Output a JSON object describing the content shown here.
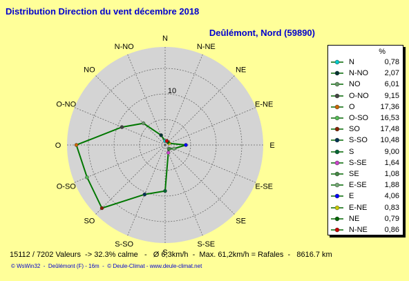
{
  "title": "Distribution Direction du vent   décembre 2018",
  "subtitle": "Deûlémont, Nord (59890)",
  "legend_header": "%",
  "stats_line": "15112 / 7202 Valeurs  -> 32.3% calme   -   Ø 6,3km/h  -  Max. 61,2km/h = Rafales  -   8616.7 km",
  "footer": "© WsWin32  -  Deûlémont (F) - 16m  -  © Deule-Climat - www.deule-climat.net",
  "chart_data": {
    "type": "radar",
    "title": "Distribution Direction du vent   décembre 2018",
    "ring_label": "10",
    "rmax": 20,
    "ring_step": 5,
    "series_color": "#007700",
    "directions": [
      {
        "name": "N",
        "value": 0.78,
        "color": "#00cccc"
      },
      {
        "name": "N-NO",
        "value": 2.07,
        "color": "#003333"
      },
      {
        "name": "NO",
        "value": 6.01,
        "color": "#669966"
      },
      {
        "name": "O-NO",
        "value": 9.15,
        "color": "#444444"
      },
      {
        "name": "O",
        "value": 17.36,
        "color": "#cc6600"
      },
      {
        "name": "O-SO",
        "value": 16.53,
        "color": "#55bb55"
      },
      {
        "name": "SO",
        "value": 17.48,
        "color": "#882200"
      },
      {
        "name": "S-SO",
        "value": 10.48,
        "color": "#003355"
      },
      {
        "name": "S",
        "value": 9.0,
        "color": "#006633"
      },
      {
        "name": "S-SE",
        "value": 1.64,
        "color": "#cc44cc"
      },
      {
        "name": "SE",
        "value": 1.08,
        "color": "#448844"
      },
      {
        "name": "E-SE",
        "value": 1.88,
        "color": "#77aa77"
      },
      {
        "name": "E",
        "value": 4.06,
        "color": "#0000ff"
      },
      {
        "name": "E-NE",
        "value": 0.83,
        "color": "#cccc00"
      },
      {
        "name": "NE",
        "value": 0.79,
        "color": "#006600"
      },
      {
        "name": "N-NE",
        "value": 0.86,
        "color": "#cc0000"
      }
    ],
    "compass_labels": [
      "N",
      "N-NE",
      "NE",
      "E-NE",
      "E",
      "E-SE",
      "SE",
      "S-SE",
      "S",
      "S-SO",
      "SO",
      "O-SO",
      "O",
      "O-NO",
      "NO",
      "N-NO"
    ]
  }
}
